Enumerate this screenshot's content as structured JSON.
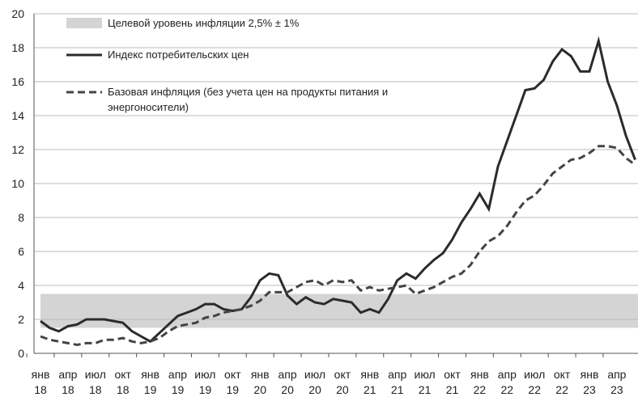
{
  "chart_data": {
    "type": "line",
    "categories": [
      [
        "янв",
        "18"
      ],
      null,
      null,
      [
        "апр",
        "18"
      ],
      null,
      null,
      [
        "июл",
        "18"
      ],
      null,
      null,
      [
        "окт",
        "18"
      ],
      null,
      null,
      [
        "янв",
        "19"
      ],
      null,
      null,
      [
        "апр",
        "19"
      ],
      null,
      null,
      [
        "июл",
        "19"
      ],
      null,
      null,
      [
        "окт",
        "19"
      ],
      null,
      null,
      [
        "янв",
        "20"
      ],
      null,
      null,
      [
        "апр",
        "20"
      ],
      null,
      null,
      [
        "июл",
        "20"
      ],
      null,
      null,
      [
        "окт",
        "20"
      ],
      null,
      null,
      [
        "янв",
        "21"
      ],
      null,
      null,
      [
        "апр",
        "21"
      ],
      null,
      null,
      [
        "июл",
        "21"
      ],
      null,
      null,
      [
        "окт",
        "21"
      ],
      null,
      null,
      [
        "янв",
        "22"
      ],
      null,
      null,
      [
        "апр",
        "22"
      ],
      null,
      null,
      [
        "июл",
        "22"
      ],
      null,
      null,
      [
        "окт",
        "22"
      ],
      null,
      null,
      [
        "янв",
        "23"
      ],
      null,
      null,
      [
        "апр",
        "23"
      ],
      null,
      null
    ],
    "band": {
      "name": "Целевой уровень инфляции 2,5% ± 1%",
      "range": [
        1.5,
        3.5
      ],
      "color": "#d4d4d4"
    },
    "series": [
      {
        "name": [
          "Индекс потребительских цен"
        ],
        "color": "#2b2b2b",
        "dash": false,
        "values": [
          1.9,
          1.5,
          1.3,
          1.6,
          1.7,
          2.0,
          2.0,
          2.0,
          1.9,
          1.8,
          1.3,
          1.0,
          0.7,
          1.2,
          1.7,
          2.2,
          2.4,
          2.6,
          2.9,
          2.9,
          2.6,
          2.5,
          2.6,
          3.3,
          4.3,
          4.7,
          4.6,
          3.4,
          2.9,
          3.3,
          3.0,
          2.9,
          3.2,
          3.1,
          3.0,
          2.4,
          2.6,
          2.4,
          3.2,
          4.3,
          4.7,
          4.4,
          5.0,
          5.5,
          5.9,
          6.7,
          7.7,
          8.5,
          9.4,
          8.5,
          11.0,
          12.5,
          14.0,
          15.5,
          15.6,
          16.1,
          17.2,
          17.9,
          17.5,
          16.6,
          16.6,
          18.4,
          16.0,
          14.6,
          12.8,
          11.4
        ]
      },
      {
        "name": [
          "Базовая инфляция (без учета цен на продукты питания и",
          "энергоносители)"
        ],
        "color": "#444444",
        "dash": true,
        "values": [
          1.0,
          0.8,
          0.7,
          0.6,
          0.5,
          0.6,
          0.6,
          0.8,
          0.8,
          0.9,
          0.7,
          0.6,
          0.7,
          0.9,
          1.3,
          1.6,
          1.7,
          1.8,
          2.1,
          2.2,
          2.4,
          2.5,
          2.6,
          2.8,
          3.1,
          3.6,
          3.6,
          3.6,
          3.9,
          4.2,
          4.3,
          4.0,
          4.3,
          4.2,
          4.3,
          3.7,
          3.9,
          3.7,
          3.8,
          3.9,
          4.0,
          3.5,
          3.7,
          3.9,
          4.2,
          4.5,
          4.7,
          5.2,
          6.0,
          6.6,
          6.9,
          7.5,
          8.3,
          9.0,
          9.3,
          9.9,
          10.6,
          11.0,
          11.4,
          11.5,
          11.8,
          12.2,
          12.2,
          12.1,
          11.5,
          11.1
        ]
      }
    ],
    "ylim": [
      0,
      20
    ],
    "yticks": [
      0,
      2,
      4,
      6,
      8,
      10,
      12,
      14,
      16,
      18,
      20
    ],
    "grid": true
  }
}
